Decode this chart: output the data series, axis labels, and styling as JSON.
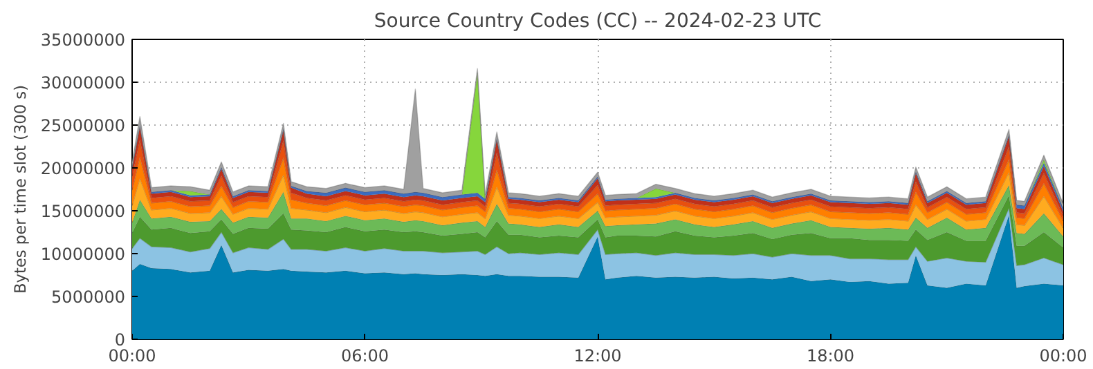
{
  "chart_data": {
    "type": "area",
    "stacked": true,
    "title": "Source Country Codes (CC) -- 2024-02-23 UTC",
    "ylabel": "Bytes per time slot (300 s)",
    "x": [
      0,
      0.2,
      0.5,
      1,
      1.5,
      2,
      2.3,
      2.6,
      3,
      3.5,
      3.9,
      4.1,
      4.5,
      5,
      5.5,
      6,
      6.5,
      7,
      7.3,
      7.5,
      8,
      8.5,
      8.9,
      9.1,
      9.4,
      9.7,
      10,
      10.5,
      11,
      11.5,
      12,
      12.2,
      12.5,
      13,
      13.5,
      14,
      14.5,
      15,
      15.5,
      16,
      16.5,
      17,
      17.5,
      18,
      18.5,
      19,
      19.5,
      20,
      20.2,
      20.5,
      21,
      21.5,
      22,
      22.6,
      22.8,
      23,
      23.5,
      24
    ],
    "xlim": [
      0,
      24
    ],
    "xticks": [
      {
        "value": 0,
        "label": "00:00"
      },
      {
        "value": 6,
        "label": "06:00"
      },
      {
        "value": 12,
        "label": "12:00"
      },
      {
        "value": 18,
        "label": "18:00"
      },
      {
        "value": 24,
        "label": "00:00"
      }
    ],
    "ylim": [
      0,
      35000000
    ],
    "yticks": [
      0,
      5000000,
      10000000,
      15000000,
      20000000,
      25000000,
      30000000,
      35000000
    ],
    "grid": true,
    "series": [
      {
        "color": "#0080b3",
        "values": [
          8000000,
          8800000,
          8300000,
          8200000,
          7800000,
          8000000,
          11000000,
          7800000,
          8100000,
          8000000,
          8200000,
          8000000,
          7900000,
          7800000,
          8000000,
          7700000,
          7800000,
          7600000,
          7700000,
          7600000,
          7500000,
          7600000,
          7500000,
          7400000,
          7600000,
          7400000,
          7400000,
          7300000,
          7300000,
          7200000,
          12000000,
          7000000,
          7200000,
          7400000,
          7200000,
          7300000,
          7200000,
          7300000,
          7100000,
          7200000,
          7000000,
          7300000,
          6800000,
          7000000,
          6700000,
          6800000,
          6500000,
          6600000,
          9800000,
          6300000,
          6000000,
          6500000,
          6300000,
          14500000,
          6000000,
          6200000,
          6500000,
          6300000
        ]
      },
      {
        "color": "#8cc3e3",
        "values": [
          2600000,
          3000000,
          2500000,
          2500000,
          2400000,
          2600000,
          1500000,
          2300000,
          2600000,
          2500000,
          3500000,
          2500000,
          2600000,
          2500000,
          2700000,
          2600000,
          2800000,
          2700000,
          2600000,
          2700000,
          2600000,
          2600000,
          2800000,
          2500000,
          3200000,
          2600000,
          2700000,
          2600000,
          2800000,
          2700000,
          800000,
          2900000,
          2800000,
          2700000,
          2600000,
          2800000,
          2700000,
          2600000,
          2700000,
          2800000,
          2600000,
          2700000,
          3000000,
          2800000,
          2700000,
          2600000,
          2800000,
          2700000,
          1000000,
          2800000,
          3500000,
          2600000,
          2700000,
          800000,
          2600000,
          2500000,
          3000000,
          2400000
        ]
      },
      {
        "color": "#4d9a2e",
        "values": [
          1800000,
          2500000,
          2000000,
          2300000,
          2200000,
          2000000,
          1500000,
          2200000,
          2300000,
          2400000,
          3000000,
          2300000,
          2200000,
          2200000,
          2400000,
          2300000,
          2200000,
          2200000,
          2300000,
          2200000,
          2000000,
          2100000,
          2200000,
          2000000,
          3000000,
          2200000,
          2100000,
          2000000,
          2000000,
          2000000,
          1200000,
          2000000,
          2100000,
          2000000,
          2200000,
          2500000,
          2200000,
          2000000,
          2300000,
          2400000,
          2100000,
          2200000,
          2600000,
          2000000,
          2400000,
          2200000,
          2300000,
          2200000,
          2000000,
          2500000,
          3000000,
          2400000,
          2500000,
          1500000,
          2300000,
          2200000,
          3000000,
          2000000
        ]
      },
      {
        "color": "#6cba57",
        "values": [
          1200000,
          2000000,
          1300000,
          1300000,
          1300000,
          1200000,
          1200000,
          1300000,
          1300000,
          1300000,
          2500000,
          1300000,
          1400000,
          1300000,
          1300000,
          1300000,
          1300000,
          1200000,
          1300000,
          1300000,
          1200000,
          1300000,
          1300000,
          1200000,
          2000000,
          1300000,
          1200000,
          1200000,
          1300000,
          1200000,
          1000000,
          1300000,
          1200000,
          1300000,
          1500000,
          1400000,
          1300000,
          1200000,
          1300000,
          1400000,
          1300000,
          1300000,
          1500000,
          1300000,
          1200000,
          1300000,
          1400000,
          1300000,
          1400000,
          1400000,
          1700000,
          1300000,
          1500000,
          1200000,
          1500000,
          1400000,
          2200000,
          1300000
        ]
      },
      {
        "color": "#ffab1f",
        "values": [
          2000000,
          2500000,
          1000000,
          1000000,
          1000000,
          1000000,
          1500000,
          1000000,
          1000000,
          1000000,
          2000000,
          1200000,
          1000000,
          1000000,
          1000000,
          1000000,
          1000000,
          1000000,
          1000000,
          1000000,
          1000000,
          1000000,
          1000000,
          1000000,
          2000000,
          1000000,
          1000000,
          1000000,
          1000000,
          1000000,
          1000000,
          1000000,
          1000000,
          1000000,
          1000000,
          1000000,
          1000000,
          1000000,
          1000000,
          1000000,
          1000000,
          1000000,
          1000000,
          1000000,
          1000000,
          1000000,
          1000000,
          1000000,
          1500000,
          1000000,
          1000000,
          1000000,
          1000000,
          1500000,
          1000000,
          1000000,
          2000000,
          1000000
        ]
      },
      {
        "color": "#ff7f00",
        "values": [
          1800000,
          2500000,
          800000,
          800000,
          800000,
          800000,
          1200000,
          800000,
          800000,
          800000,
          2000000,
          1000000,
          800000,
          800000,
          800000,
          800000,
          800000,
          800000,
          800000,
          800000,
          800000,
          800000,
          800000,
          800000,
          2000000,
          800000,
          800000,
          800000,
          800000,
          800000,
          1000000,
          800000,
          800000,
          800000,
          800000,
          800000,
          800000,
          800000,
          800000,
          800000,
          800000,
          800000,
          800000,
          800000,
          800000,
          800000,
          800000,
          800000,
          1500000,
          800000,
          800000,
          800000,
          800000,
          1500000,
          800000,
          800000,
          1500000,
          800000
        ]
      },
      {
        "color": "#e8500f",
        "values": [
          1600000,
          2000000,
          600000,
          600000,
          600000,
          600000,
          1200000,
          600000,
          600000,
          600000,
          2000000,
          800000,
          600000,
          600000,
          600000,
          600000,
          600000,
          600000,
          600000,
          600000,
          600000,
          600000,
          600000,
          600000,
          2000000,
          600000,
          600000,
          600000,
          600000,
          600000,
          1000000,
          600000,
          600000,
          600000,
          600000,
          600000,
          600000,
          600000,
          600000,
          600000,
          600000,
          600000,
          600000,
          600000,
          600000,
          600000,
          600000,
          600000,
          1200000,
          600000,
          600000,
          600000,
          600000,
          1500000,
          600000,
          600000,
          1200000,
          600000
        ]
      },
      {
        "color": "#c0301a",
        "values": [
          1000000,
          1500000,
          500000,
          500000,
          500000,
          500000,
          800000,
          500000,
          500000,
          500000,
          1200000,
          600000,
          500000,
          500000,
          500000,
          500000,
          500000,
          500000,
          500000,
          500000,
          500000,
          500000,
          500000,
          500000,
          1500000,
          500000,
          500000,
          500000,
          500000,
          500000,
          800000,
          500000,
          500000,
          500000,
          500000,
          500000,
          500000,
          500000,
          500000,
          500000,
          500000,
          500000,
          500000,
          500000,
          500000,
          500000,
          500000,
          500000,
          1000000,
          500000,
          500000,
          500000,
          500000,
          1200000,
          500000,
          500000,
          800000,
          500000
        ]
      },
      {
        "color": "#3b6cc0",
        "values": [
          200000,
          200000,
          200000,
          200000,
          200000,
          200000,
          200000,
          200000,
          200000,
          200000,
          200000,
          200000,
          300000,
          400000,
          400000,
          400000,
          400000,
          400000,
          400000,
          400000,
          400000,
          400000,
          400000,
          400000,
          200000,
          200000,
          200000,
          200000,
          200000,
          200000,
          200000,
          200000,
          200000,
          200000,
          200000,
          200000,
          200000,
          200000,
          200000,
          200000,
          200000,
          200000,
          200000,
          200000,
          200000,
          200000,
          200000,
          200000,
          200000,
          200000,
          200000,
          200000,
          200000,
          200000,
          400000,
          400000,
          400000,
          400000
        ]
      },
      {
        "color": "#86d63c",
        "values": [
          0,
          0,
          0,
          0,
          500000,
          0,
          0,
          0,
          0,
          0,
          0,
          0,
          0,
          0,
          0,
          0,
          0,
          0,
          0,
          0,
          0,
          0,
          14000000,
          0,
          0,
          0,
          0,
          0,
          0,
          0,
          0,
          0,
          0,
          0,
          1000000,
          0,
          0,
          0,
          0,
          0,
          0,
          0,
          0,
          0,
          0,
          0,
          0,
          0,
          0,
          0,
          0,
          0,
          0,
          0,
          0,
          0,
          400000,
          0
        ]
      },
      {
        "color": "#a0a0a0",
        "values": [
          500000,
          1000000,
          500000,
          500000,
          500000,
          500000,
          600000,
          500000,
          500000,
          500000,
          600000,
          500000,
          500000,
          500000,
          500000,
          500000,
          500000,
          500000,
          12000000,
          500000,
          500000,
          500000,
          500000,
          500000,
          700000,
          500000,
          500000,
          500000,
          500000,
          500000,
          500000,
          500000,
          500000,
          500000,
          500000,
          500000,
          500000,
          500000,
          500000,
          500000,
          500000,
          500000,
          500000,
          500000,
          500000,
          500000,
          500000,
          500000,
          500000,
          500000,
          500000,
          500000,
          500000,
          600000,
          500000,
          500000,
          500000,
          500000
        ]
      }
    ]
  }
}
